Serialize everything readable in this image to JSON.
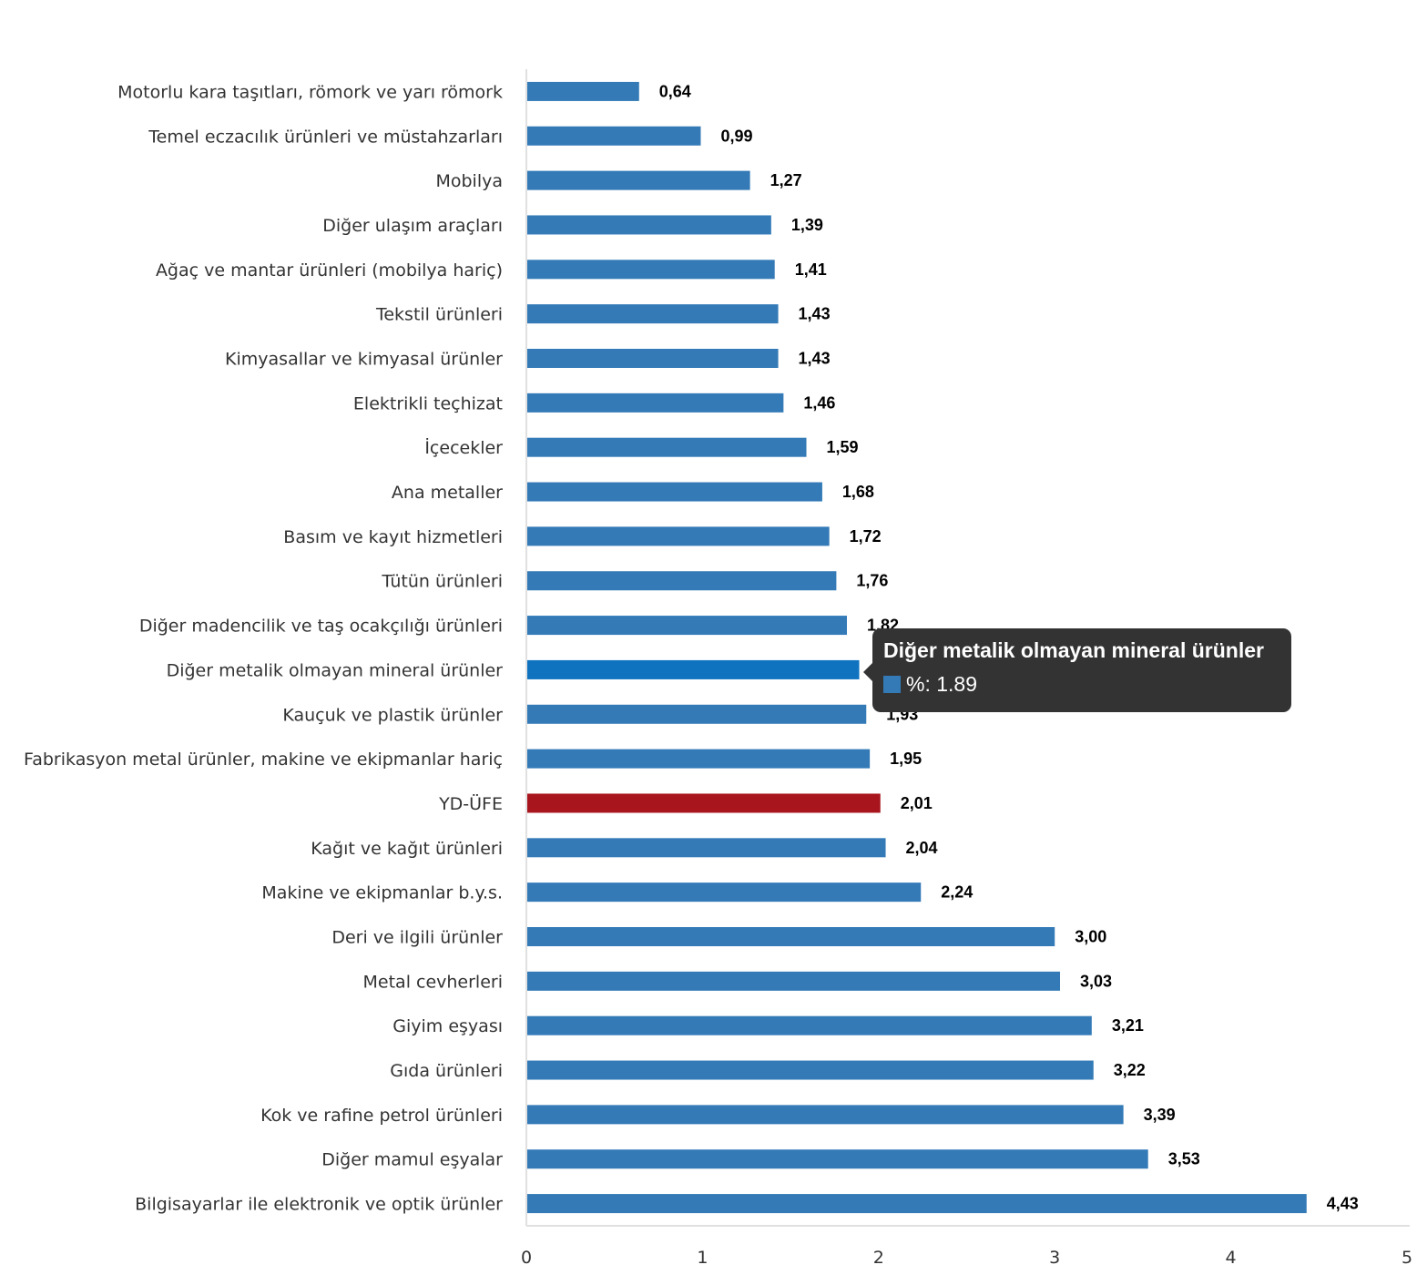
{
  "chart_data": {
    "type": "bar",
    "orientation": "horizontal",
    "title": "",
    "xlabel": "",
    "ylabel": "",
    "xlim": [
      0,
      5
    ],
    "x_ticks": [
      "0",
      "1",
      "2",
      "3",
      "4",
      "5"
    ],
    "grid": false,
    "legend": "none",
    "colors": {
      "default": "#337ab7",
      "highlight": "#a8151d",
      "hover": "#0f73c0"
    },
    "categories": [
      "Motorlu kara taşıtları, römork ve yarı römork",
      "Temel eczacılık ürünleri ve müstahzarları",
      "Mobilya",
      "Diğer ulaşım araçları",
      "Ağaç ve mantar ürünleri (mobilya hariç)",
      "Tekstil ürünleri",
      "Kimyasallar ve kimyasal ürünler",
      "Elektrikli teçhizat",
      "İçecekler",
      "Ana metaller",
      "Basım ve kayıt hizmetleri",
      "Tütün ürünleri",
      "Diğer madencilik ve taş ocakçılığı ürünleri",
      "Diğer metalik olmayan mineral ürünler",
      "Kauçuk ve plastik ürünler",
      "Fabrikasyon metal ürünler, makine ve ekipmanlar hariç",
      "YD-ÜFE",
      "Kağıt ve kağıt ürünleri",
      "Makine ve ekipmanlar b.y.s.",
      "Deri ve ilgili ürünler",
      "Metal cevherleri",
      "Giyim eşyası",
      "Gıda ürünleri",
      "Kok ve rafine petrol ürünleri",
      "Diğer mamul eşyalar",
      "Bilgisayarlar ile elektronik ve optik ürünler"
    ],
    "values": [
      0.64,
      0.99,
      1.27,
      1.39,
      1.41,
      1.43,
      1.43,
      1.46,
      1.59,
      1.68,
      1.72,
      1.76,
      1.82,
      1.89,
      1.93,
      1.95,
      2.01,
      2.04,
      2.24,
      3.0,
      3.03,
      3.21,
      3.22,
      3.39,
      3.53,
      4.43
    ],
    "value_labels": [
      "0,64",
      "0,99",
      "1,27",
      "1,39",
      "1,41",
      "1,43",
      "1,43",
      "1,46",
      "1,59",
      "1,68",
      "1,72",
      "1,76",
      "1,82",
      "1,89",
      "1,93",
      "1,95",
      "2,01",
      "2,04",
      "2,24",
      "3,00",
      "3,03",
      "3,21",
      "3,22",
      "3,39",
      "3,53",
      "4,43"
    ],
    "highlight_category": "YD-ÜFE",
    "hovered_category": "Diğer metalik olmayan mineral ürünler"
  },
  "tooltip": {
    "title": "Diğer metalik olmayan mineral ürünler",
    "series_label": "%: 1.89",
    "swatch_color": "#337ab7"
  }
}
